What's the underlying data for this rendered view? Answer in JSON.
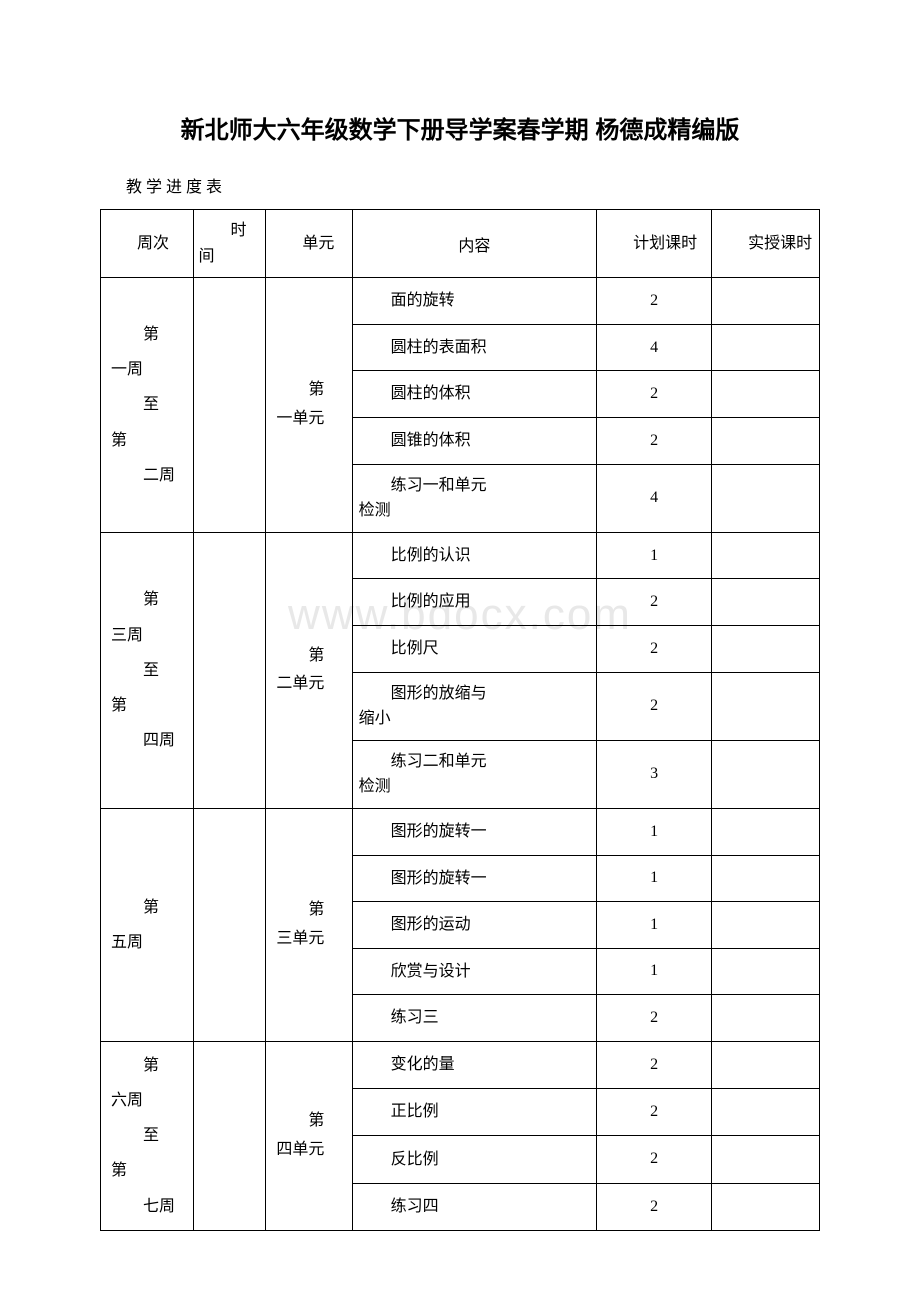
{
  "title": "新北师大六年级数学下册导学案春学期 杨德成精编版",
  "subtitle": "教学进度表",
  "watermark": "www.bdocx.com",
  "headers": {
    "week": "周次",
    "time": "时间",
    "unit": "单元",
    "content": "内容",
    "plan": "计划课时",
    "actual": "实授课时"
  },
  "sections": [
    {
      "week_lines": [
        "第",
        "一周",
        "至",
        "第",
        "二周"
      ],
      "unit_lines": [
        "第",
        "一单元"
      ],
      "rows": [
        {
          "content": "面的旋转",
          "plan": "2",
          "multi": false
        },
        {
          "content": "圆柱的表面积",
          "plan": "4",
          "multi": false
        },
        {
          "content": "圆柱的体积",
          "plan": "2",
          "multi": false
        },
        {
          "content": "圆锥的体积",
          "plan": "2",
          "multi": false
        },
        {
          "content_l1": "练习一和单元",
          "content_l2": "检测",
          "plan": "4",
          "multi": true
        }
      ]
    },
    {
      "week_lines": [
        "第",
        "三周",
        "至",
        "第",
        "四周"
      ],
      "unit_lines": [
        "第",
        "二单元"
      ],
      "rows": [
        {
          "content": "比例的认识",
          "plan": "1",
          "multi": false
        },
        {
          "content": "比例的应用",
          "plan": "2",
          "multi": false
        },
        {
          "content": "比例尺",
          "plan": "2",
          "multi": false
        },
        {
          "content_l1": "图形的放缩与",
          "content_l2": "缩小",
          "plan": "2",
          "multi": true
        },
        {
          "content_l1": "练习二和单元",
          "content_l2": "检测",
          "plan": "3",
          "multi": true
        }
      ]
    },
    {
      "week_lines": [
        "第",
        "五周"
      ],
      "unit_lines": [
        "第",
        "三单元"
      ],
      "rows": [
        {
          "content": "图形的旋转一",
          "plan": "1",
          "multi": false
        },
        {
          "content": "图形的旋转一",
          "plan": "1",
          "multi": false
        },
        {
          "content": "图形的运动",
          "plan": "1",
          "multi": false
        },
        {
          "content": "欣赏与设计",
          "plan": "1",
          "multi": false
        },
        {
          "content": "练习三",
          "plan": "2",
          "multi": false
        }
      ]
    },
    {
      "week_lines": [
        "第",
        "六周",
        "至",
        "第",
        "七周"
      ],
      "unit_lines": [
        "第",
        "四单元"
      ],
      "rows": [
        {
          "content": "变化的量",
          "plan": "2",
          "multi": false
        },
        {
          "content": "正比例",
          "plan": "2",
          "multi": false
        },
        {
          "content": "反比例",
          "plan": "2",
          "multi": false
        },
        {
          "content": "练习四",
          "plan": "2",
          "multi": false
        }
      ]
    }
  ]
}
